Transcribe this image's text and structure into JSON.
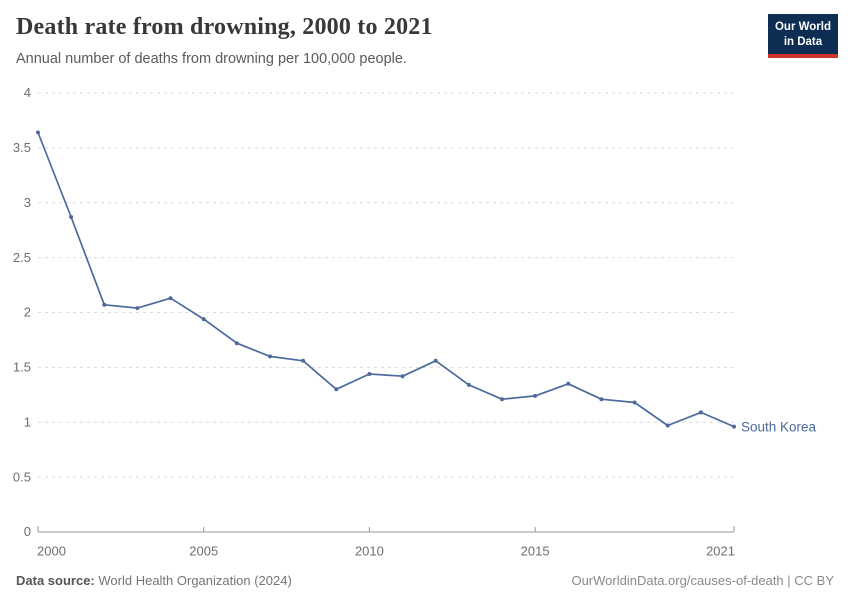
{
  "header": {
    "title": "Death rate from drowning, 2000 to 2021",
    "subtitle": "Annual number of deaths from drowning per 100,000 people.",
    "logo": {
      "line1": "Our World",
      "line2": "in Data"
    }
  },
  "chart_data": {
    "type": "line",
    "title": "Death rate from drowning, 2000 to 2021",
    "ylabel": "Annual number of deaths from drowning per 100,000 people",
    "x": [
      2000,
      2001,
      2002,
      2003,
      2004,
      2005,
      2006,
      2007,
      2008,
      2009,
      2010,
      2011,
      2012,
      2013,
      2014,
      2015,
      2016,
      2017,
      2018,
      2019,
      2020,
      2021
    ],
    "series": [
      {
        "name": "South Korea",
        "values": [
          3.64,
          2.87,
          2.07,
          2.04,
          2.13,
          1.94,
          1.72,
          1.6,
          1.56,
          1.3,
          1.44,
          1.42,
          1.56,
          1.34,
          1.21,
          1.24,
          1.35,
          1.21,
          1.18,
          0.97,
          1.09,
          0.96
        ]
      }
    ],
    "end_label": "South Korea",
    "xlim": [
      2000,
      2021
    ],
    "ylim": [
      0,
      4
    ],
    "xticks": [
      2000,
      2005,
      2010,
      2015,
      2021
    ],
    "yticks": [
      0,
      0.5,
      1,
      1.5,
      2,
      2.5,
      3,
      3.5,
      4
    ],
    "grid": "horizontal-dashed",
    "legend_position": "line-end-label"
  },
  "footer": {
    "source_label": "Data source:",
    "source_value": "World Health Organization (2024)",
    "license": "OurWorldinData.org/causes-of-death | CC BY"
  },
  "colors": {
    "line": "#4c6a9c",
    "entity_label": "#4c6a9c",
    "grid": "#dcdcdc",
    "axis": "#999999",
    "tick_text": "#6e6e6e",
    "logo_bg": "#0d2d52",
    "logo_stripe": "#d0342c"
  }
}
